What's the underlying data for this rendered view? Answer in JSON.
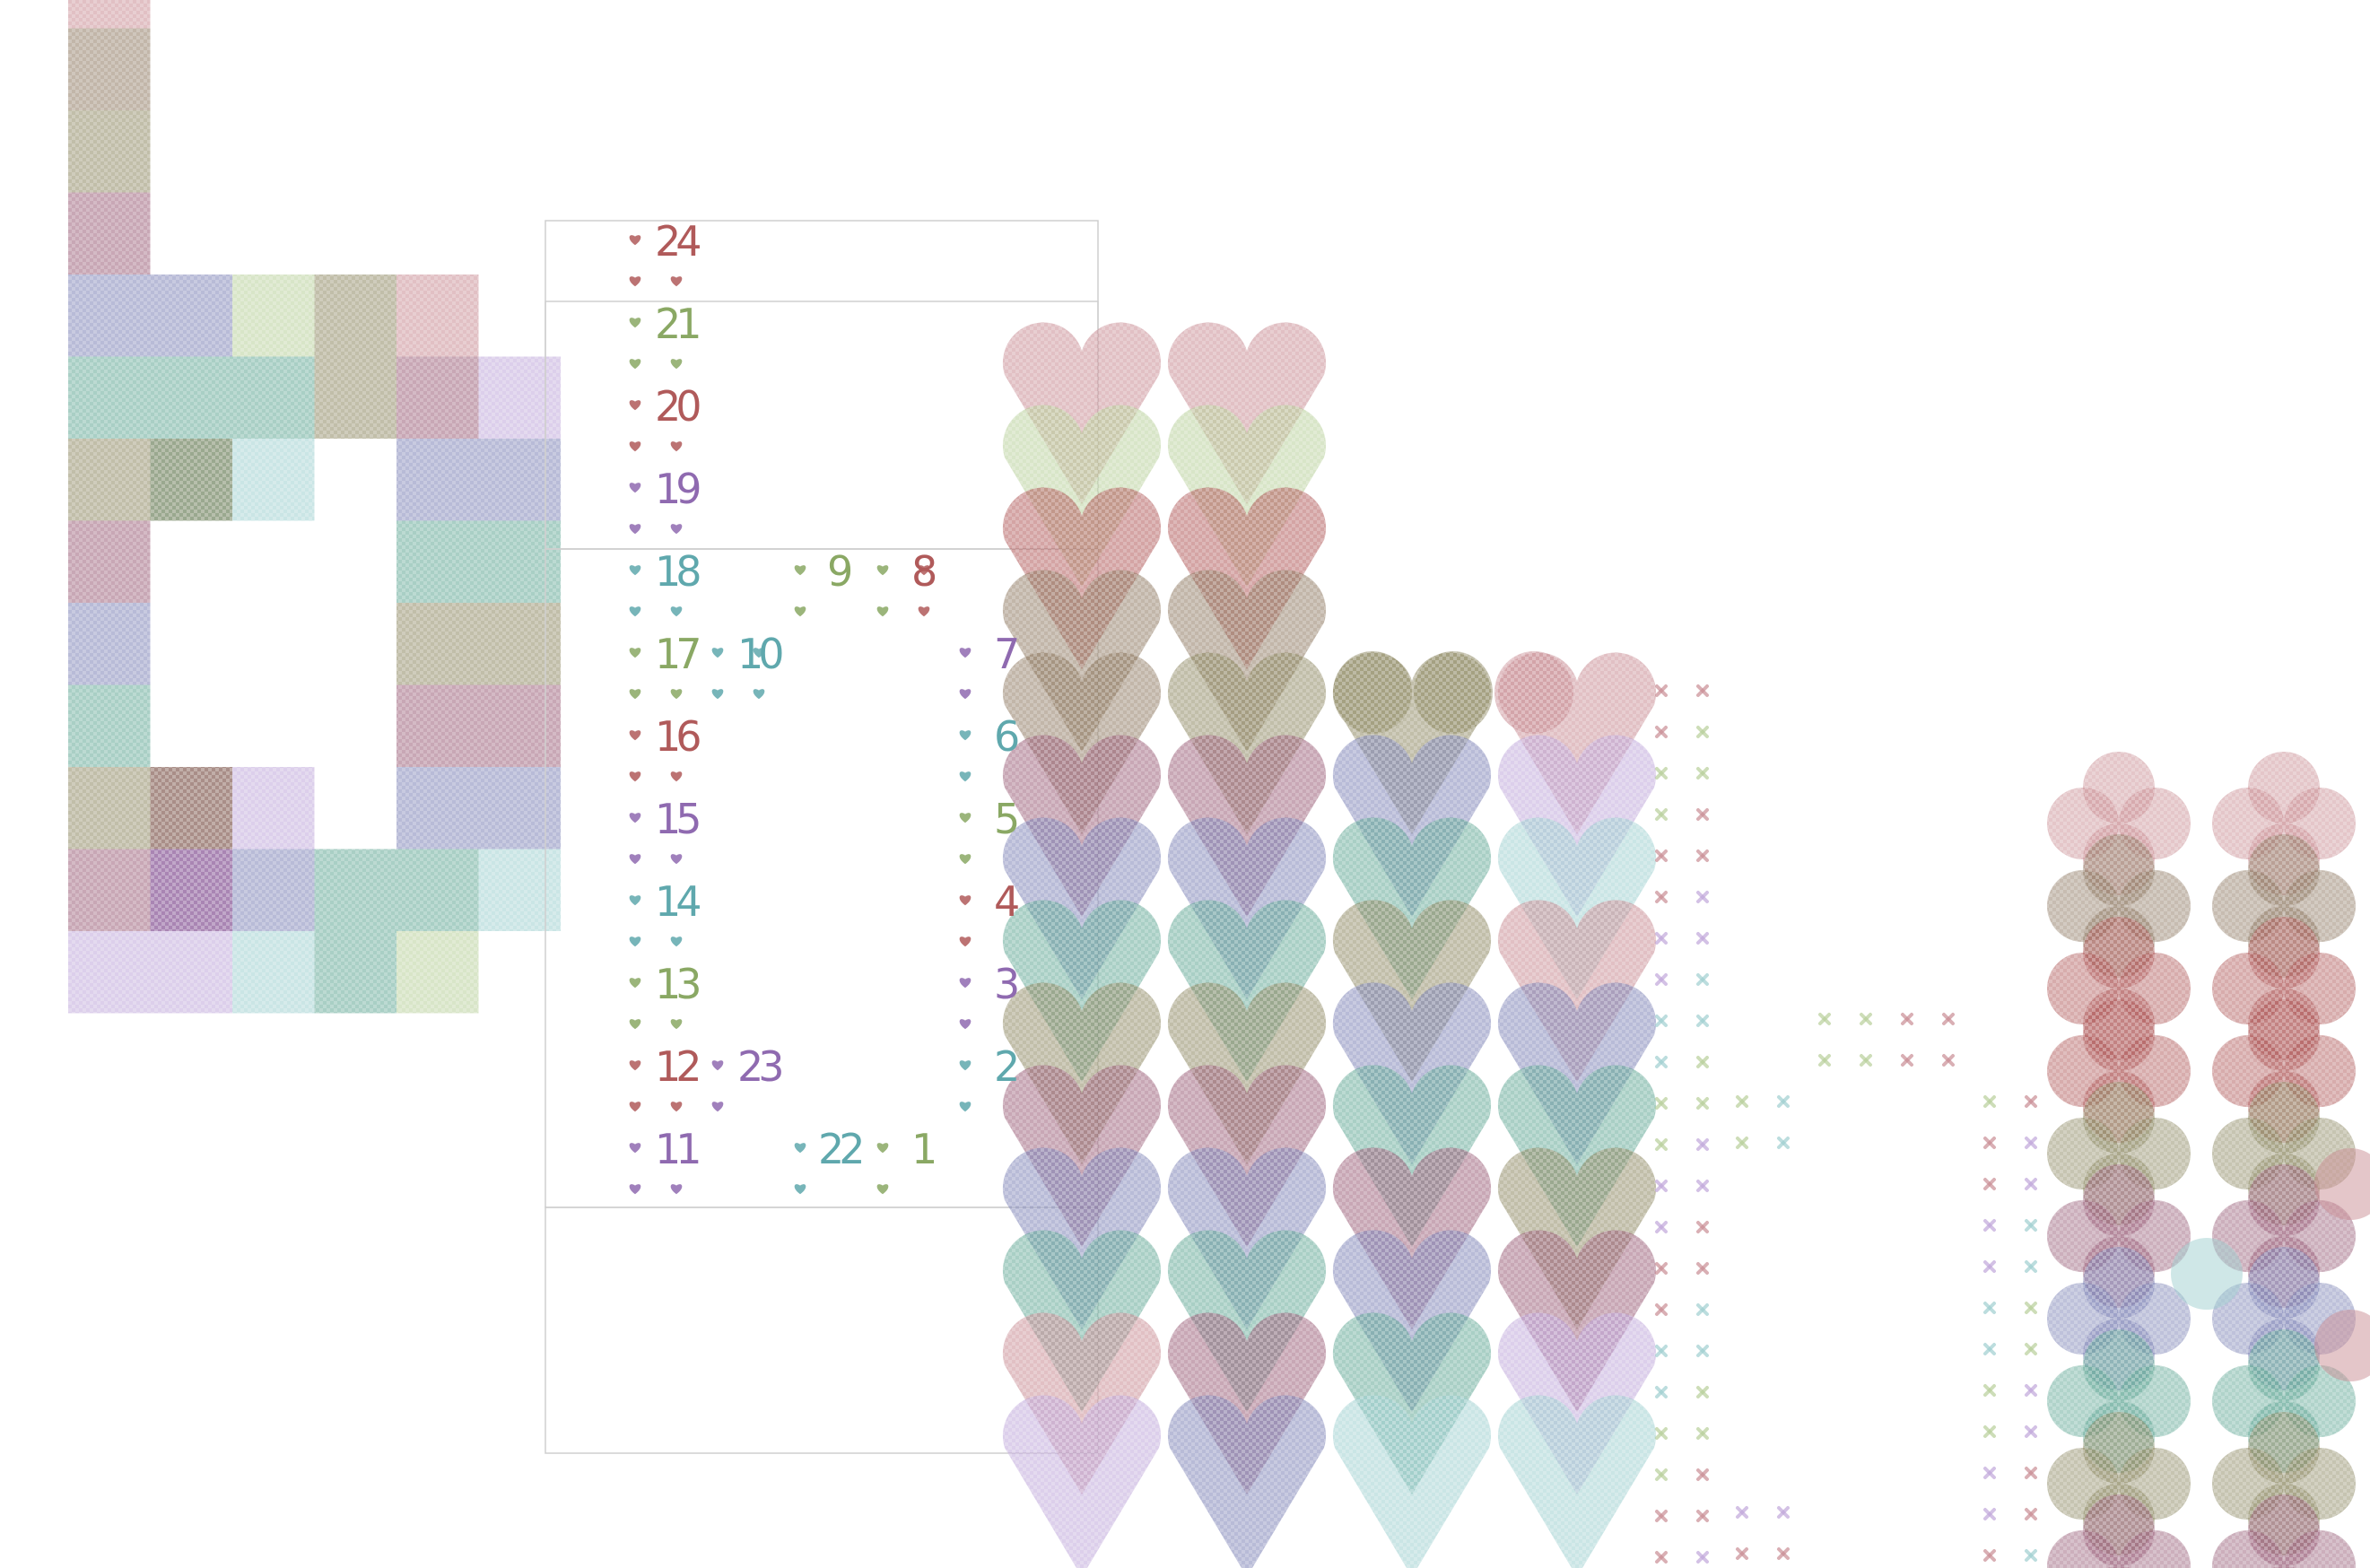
{
  "palette": {
    "rose": "#c98d94",
    "taupe": "#8f7a63",
    "olive": "#8e8963",
    "plum": "#9a5f79",
    "slate": "#7e84b6",
    "sage": "#b8cf9a",
    "teal": "#62a895",
    "mint": "#9fcfd0",
    "lilac": "#c0a7da",
    "red": "#b05a5a",
    "green": "#8aa864",
    "purple": "#8f6ab0",
    "cyan": "#5fa8ad"
  },
  "number_labels": [
    "24",
    "21",
    "20",
    "19",
    "18",
    "17",
    "16",
    "15",
    "14",
    "13",
    "12",
    "11",
    "10",
    "9",
    "8",
    "7",
    "6",
    "5",
    "4",
    "3",
    "2",
    "1",
    "23",
    "22"
  ],
  "icons": {
    "marker": "heart-icon",
    "large_shape": "heart-icon",
    "flower": "four-petal-icon",
    "cross": "cross-icon"
  }
}
